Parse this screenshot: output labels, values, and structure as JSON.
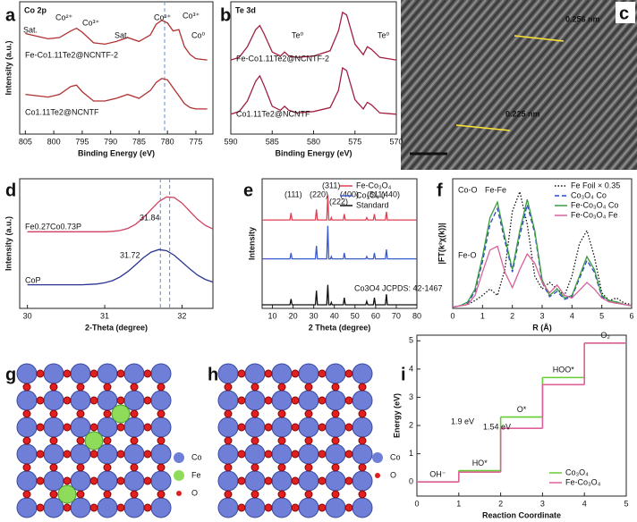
{
  "panel_letters": [
    "a",
    "b",
    "c",
    "d",
    "e",
    "f",
    "g",
    "h",
    "i"
  ],
  "images": {
    "c": {
      "labels": [
        "0.256 nm",
        "0.225 nm"
      ]
    },
    "g": {
      "legend": [
        "Co",
        "Fe",
        "O"
      ]
    },
    "h": {
      "legend": [
        "Co",
        "O"
      ]
    }
  },
  "chart_data": [
    {
      "type": "line",
      "title": "Co 2p",
      "x_label": "Binding Energy (eV)",
      "y_label": "Intensity (a.u.)",
      "x": [
        805,
        803,
        801,
        799,
        797,
        796,
        795,
        793,
        791,
        789,
        787,
        785,
        783,
        782,
        781,
        780,
        779,
        778,
        777,
        776,
        775,
        773
      ],
      "series": [
        {
          "color": "#b03030",
          "values": [
            7.6,
            7.4,
            7.2,
            7.3,
            7.8,
            8.0,
            7.7,
            6.9,
            6.8,
            7.0,
            7.3,
            7.0,
            7.5,
            8.3,
            8.6,
            8.4,
            7.8,
            7.9,
            6.6,
            6.0,
            5.7,
            5.6
          ]
        },
        {
          "color": "#b03030",
          "values": [
            3.0,
            2.9,
            2.8,
            3.0,
            3.6,
            3.7,
            3.2,
            2.5,
            2.5,
            2.7,
            3.0,
            2.7,
            3.3,
            3.9,
            4.2,
            4.1,
            3.5,
            2.9,
            2.3,
            2.0,
            1.9,
            1.9
          ]
        }
      ],
      "xlim": [
        806,
        772
      ],
      "xticks": [
        805,
        800,
        795,
        790,
        785,
        780,
        775
      ],
      "ylim": [
        0,
        10
      ],
      "vlines": [
        780.5
      ],
      "annotations": [
        "Sat.",
        "Co²⁺",
        "Co³⁺",
        "Sat.",
        "Co²⁺",
        "Co³⁺",
        "Co⁰",
        "Fe-Co1.11Te2@NCNTF-2",
        "Co1.11Te2@NCNTF"
      ]
    },
    {
      "type": "line",
      "title": "Te 3d",
      "x_label": "Binding Energy (eV)",
      "x": [
        590,
        589,
        588,
        587,
        586.5,
        586,
        585,
        584,
        583.5,
        583,
        582,
        580,
        578,
        577,
        576.5,
        576,
        575,
        574,
        573.5,
        573,
        572,
        570
      ],
      "series": [
        {
          "color": "#a02040",
          "values": [
            5.6,
            5.8,
            6.6,
            7.9,
            8.2,
            7.6,
            6.2,
            5.9,
            6.2,
            5.9,
            5.8,
            5.9,
            6.3,
            7.8,
            9.2,
            9.0,
            6.8,
            6.0,
            6.6,
            6.4,
            5.8,
            5.6
          ]
        },
        {
          "color": "#a02040",
          "values": [
            1.5,
            1.7,
            2.5,
            4.0,
            4.4,
            3.7,
            2.1,
            1.8,
            2.1,
            1.8,
            1.6,
            1.7,
            2.0,
            3.3,
            5.0,
            4.8,
            2.6,
            1.9,
            2.4,
            2.2,
            1.6,
            1.5
          ]
        }
      ],
      "xlim": [
        590,
        570
      ],
      "xticks": [
        590,
        585,
        580,
        575,
        570
      ],
      "ylim": [
        0,
        10
      ],
      "annotations": [
        "Te⁰",
        "Te⁰",
        "Fe-Co1.11Te2@NCNTF-2",
        "Co1.11Te2@NCNTF"
      ]
    },
    {
      "type": "line",
      "x_label": "2-Theta (degree)",
      "y_label": "Intensity (a.u.)",
      "x": [
        30.0,
        30.1,
        30.2,
        30.3,
        30.4,
        30.5,
        30.6,
        30.7,
        30.8,
        30.9,
        31.0,
        31.1,
        31.2,
        31.3,
        31.4,
        31.5,
        31.6,
        31.7,
        31.8,
        31.9,
        32.0,
        32.1,
        32.2,
        32.3,
        32.4
      ],
      "series": [
        {
          "color": "#d04060",
          "values": [
            6.5,
            6.5,
            6.5,
            6.5,
            6.5,
            6.5,
            6.5,
            6.5,
            6.5,
            6.5,
            6.5,
            6.54,
            6.61,
            6.79,
            7.14,
            7.69,
            8.39,
            9.06,
            9.46,
            9.41,
            8.94,
            8.25,
            7.56,
            7.05,
            6.74
          ]
        },
        {
          "color": "#283593",
          "values": [
            2.0,
            2.0,
            2.0,
            2.0,
            2.0,
            2.0,
            2.0,
            2.0,
            2.03,
            2.07,
            2.17,
            2.35,
            2.67,
            3.13,
            3.7,
            4.29,
            4.77,
            4.99,
            4.89,
            4.51,
            3.94,
            3.35,
            2.83,
            2.46,
            2.23
          ]
        }
      ],
      "xlim": [
        29.9,
        32.4
      ],
      "xticks": [
        30,
        31,
        32
      ],
      "ylim": [
        0,
        11
      ],
      "vlines": [
        31.84,
        31.72
      ],
      "annotations": [
        "Fe0.27Co0.73P",
        "31.84",
        "31.72",
        "CoP"
      ]
    },
    {
      "type": "line",
      "x_label": "2 Theta (degree)",
      "y_label": "Intensity",
      "legend": "upper right",
      "x": [
        5,
        18.5,
        19,
        19.5,
        30.8,
        31.3,
        31.8,
        36.3,
        36.8,
        37.3,
        38.1,
        38.5,
        38.9,
        44.3,
        44.8,
        45.3,
        55.2,
        55.7,
        56.2,
        58.9,
        59.4,
        59.9,
        64.7,
        65.2,
        65.7,
        80
      ],
      "series": [
        {
          "name": "Fe-Co₃O₄",
          "color": "#e04050",
          "values": [
            7.5,
            7.5,
            8.1,
            7.5,
            7.5,
            8.4,
            7.5,
            7.5,
            9.6,
            7.5,
            7.5,
            7.7,
            7.5,
            7.5,
            8.0,
            7.5,
            7.5,
            7.7,
            7.5,
            7.5,
            8.0,
            7.5,
            7.5,
            8.2,
            7.5,
            7.5
          ]
        },
        {
          "name": "Co₃O₄",
          "color": "#3b5bcc",
          "values": [
            4.2,
            4.2,
            4.7,
            4.2,
            4.2,
            5.3,
            4.2,
            4.2,
            7.0,
            4.2,
            4.2,
            4.4,
            4.2,
            4.2,
            4.7,
            4.2,
            4.2,
            4.4,
            4.2,
            4.2,
            4.7,
            4.2,
            4.2,
            5.0,
            4.2,
            4.2
          ]
        },
        {
          "name": "Standard",
          "color": "#111111",
          "values": [
            0.3,
            0.3,
            0.8,
            0.3,
            0.3,
            1.5,
            0.3,
            0.3,
            2.0,
            0.3,
            0.3,
            0.5,
            0.3,
            0.3,
            0.9,
            0.3,
            0.3,
            0.6,
            0.3,
            0.3,
            0.9,
            0.3,
            0.3,
            1.2,
            0.3,
            0.3
          ]
        }
      ],
      "xlim": [
        5,
        80
      ],
      "xticks": [
        10,
        20,
        30,
        40,
        50,
        60,
        70,
        80
      ],
      "ylim": [
        0,
        11
      ],
      "annotations": [
        "(111)",
        "(220)",
        "(311)",
        "(222)",
        "(400)",
        "(511)",
        "(440)",
        "Co3O4 JCPDS: 42-1467"
      ]
    },
    {
      "type": "line",
      "x_label": "R (Å)",
      "y_label": "|FT(k²χ(k))|",
      "legend": "upper right",
      "x": [
        0,
        0.25,
        0.5,
        0.75,
        1,
        1.25,
        1.5,
        1.75,
        2,
        2.25,
        2.5,
        2.75,
        3,
        3.25,
        3.5,
        3.75,
        4,
        4.25,
        4.5,
        4.75,
        5,
        5.25,
        5.5,
        5.75,
        6
      ],
      "series": [
        {
          "name": "Fe Foil × 0.35",
          "color": "#111111",
          "linestyle": "dotted",
          "values": [
            0.1,
            0.2,
            0.3,
            0.6,
            1.0,
            1.5,
            1.0,
            3.0,
            7.5,
            9.0,
            6.5,
            2.5,
            1.5,
            2.0,
            1.5,
            1.0,
            2.5,
            5.0,
            6.0,
            4.0,
            1.2,
            0.6,
            0.8,
            0.4,
            0.3
          ]
        },
        {
          "name": "Co₃O₄ Co",
          "color": "#2848c8",
          "linestyle": "dashed",
          "values": [
            0.1,
            0.2,
            0.4,
            1.3,
            3.6,
            6.5,
            7.7,
            5.2,
            2.8,
            5.6,
            8.0,
            5.8,
            2.0,
            0.9,
            1.3,
            0.7,
            0.9,
            2.3,
            3.7,
            2.8,
            0.9,
            0.5,
            0.4,
            0.3,
            0.2
          ]
        },
        {
          "name": "Fe-Co₃O₄ Co",
          "color": "#3a9a40",
          "linestyle": "solid",
          "values": [
            0.1,
            0.2,
            0.5,
            1.5,
            4.0,
            7.0,
            8.2,
            5.5,
            3.0,
            6.0,
            8.4,
            6.0,
            2.2,
            1.0,
            1.5,
            0.8,
            1.0,
            2.5,
            4.0,
            3.0,
            1.0,
            0.6,
            0.5,
            0.3,
            0.2
          ]
        },
        {
          "name": "Fe-Co₃O₄ Fe",
          "color": "#d8609a",
          "linestyle": "solid",
          "values": [
            0.1,
            0.2,
            0.3,
            1.0,
            2.8,
            4.5,
            4.8,
            2.8,
            1.6,
            3.0,
            4.2,
            3.5,
            2.0,
            1.2,
            1.8,
            1.0,
            0.8,
            1.4,
            2.0,
            1.5,
            0.8,
            0.5,
            0.4,
            0.3,
            0.2
          ]
        }
      ],
      "xlim": [
        0,
        6
      ],
      "xticks": [
        0,
        1,
        2,
        3,
        4,
        5,
        6
      ],
      "ylim": [
        0,
        10
      ],
      "annotations": [
        "Co-O",
        "Fe-Fe",
        "Fe-O"
      ]
    },
    {
      "type": "step",
      "x_label": "Reaction Coordinate",
      "y_label": "Energy (eV)",
      "legend": "lower right",
      "categories": [
        "OH⁻",
        "HO*",
        "O*",
        "HOO*",
        "O₂"
      ],
      "series": [
        {
          "name": "Co₃O₄",
          "color": "#66cc33",
          "values": [
            0,
            0.4,
            2.3,
            3.7,
            4.92
          ]
        },
        {
          "name": "Fe-Co₃O₄",
          "color": "#e0609a",
          "values": [
            0,
            0.35,
            1.9,
            3.45,
            4.92
          ]
        }
      ],
      "xlim": [
        0,
        5
      ],
      "xticks": [
        0,
        1,
        2,
        3,
        4,
        5
      ],
      "ylim": [
        -0.5,
        5.2
      ],
      "yticks": [
        0,
        1,
        2,
        3,
        4,
        5
      ],
      "annotations": [
        "1.9 eV",
        "1.54 eV"
      ]
    }
  ]
}
